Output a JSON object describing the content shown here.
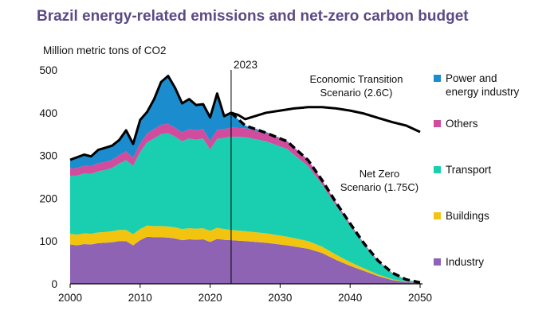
{
  "title": "Brazil energy-related emissions and net-zero carbon budget",
  "chart_data": {
    "type": "area",
    "title": "Brazil energy-related emissions and net-zero carbon budget",
    "ylabel": "Million metric tons of CO2",
    "xlabel": "",
    "xlim": [
      2000,
      2050
    ],
    "ylim": [
      0,
      500
    ],
    "x_ticks": [
      2000,
      2010,
      2020,
      2030,
      2040,
      2050
    ],
    "y_ticks": [
      0,
      100,
      200,
      300,
      400,
      500
    ],
    "grid": false,
    "legend": "right",
    "marker": {
      "x": 2023,
      "label": "2023"
    },
    "series": [
      {
        "name": "Industry",
        "color": "#8e63b4",
        "points": [
          [
            2000,
            92
          ],
          [
            2001,
            90
          ],
          [
            2002,
            93
          ],
          [
            2003,
            92
          ],
          [
            2004,
            95
          ],
          [
            2005,
            96
          ],
          [
            2006,
            97
          ],
          [
            2007,
            100
          ],
          [
            2008,
            100
          ],
          [
            2009,
            90
          ],
          [
            2010,
            102
          ],
          [
            2011,
            110
          ],
          [
            2012,
            109
          ],
          [
            2013,
            109
          ],
          [
            2014,
            108
          ],
          [
            2015,
            106
          ],
          [
            2016,
            102
          ],
          [
            2017,
            104
          ],
          [
            2018,
            103
          ],
          [
            2019,
            104
          ],
          [
            2020,
            98
          ],
          [
            2021,
            105
          ],
          [
            2022,
            103
          ],
          [
            2023,
            102
          ],
          [
            2025,
            100
          ],
          [
            2028,
            96
          ],
          [
            2031,
            90
          ],
          [
            2034,
            82
          ],
          [
            2036,
            72
          ],
          [
            2038,
            56
          ],
          [
            2040,
            42
          ],
          [
            2042,
            30
          ],
          [
            2044,
            18
          ],
          [
            2046,
            9
          ],
          [
            2048,
            4
          ],
          [
            2050,
            2
          ]
        ]
      },
      {
        "name": "Buildings",
        "color": "#f2c410",
        "points": [
          [
            2000,
            25
          ],
          [
            2001,
            25
          ],
          [
            2002,
            25
          ],
          [
            2003,
            25
          ],
          [
            2004,
            25
          ],
          [
            2005,
            25
          ],
          [
            2006,
            26
          ],
          [
            2007,
            26
          ],
          [
            2008,
            26
          ],
          [
            2009,
            26
          ],
          [
            2010,
            26
          ],
          [
            2011,
            26
          ],
          [
            2012,
            26
          ],
          [
            2013,
            26
          ],
          [
            2014,
            26
          ],
          [
            2015,
            26
          ],
          [
            2016,
            26
          ],
          [
            2017,
            26
          ],
          [
            2018,
            26
          ],
          [
            2019,
            26
          ],
          [
            2020,
            26
          ],
          [
            2021,
            26
          ],
          [
            2022,
            25
          ],
          [
            2023,
            24
          ],
          [
            2025,
            23
          ],
          [
            2028,
            22
          ],
          [
            2031,
            20
          ],
          [
            2034,
            18
          ],
          [
            2036,
            15
          ],
          [
            2038,
            12
          ],
          [
            2040,
            9
          ],
          [
            2042,
            6
          ],
          [
            2044,
            4
          ],
          [
            2046,
            2
          ],
          [
            2048,
            1
          ],
          [
            2050,
            0
          ]
        ]
      },
      {
        "name": "Transport",
        "color": "#19cfb0",
        "points": [
          [
            2000,
            135
          ],
          [
            2001,
            138
          ],
          [
            2002,
            140
          ],
          [
            2003,
            140
          ],
          [
            2004,
            143
          ],
          [
            2005,
            145
          ],
          [
            2006,
            148
          ],
          [
            2007,
            155
          ],
          [
            2008,
            163
          ],
          [
            2009,
            160
          ],
          [
            2010,
            180
          ],
          [
            2011,
            195
          ],
          [
            2012,
            205
          ],
          [
            2013,
            215
          ],
          [
            2014,
            218
          ],
          [
            2015,
            212
          ],
          [
            2016,
            205
          ],
          [
            2017,
            210
          ],
          [
            2018,
            208
          ],
          [
            2019,
            210
          ],
          [
            2020,
            190
          ],
          [
            2021,
            208
          ],
          [
            2022,
            213
          ],
          [
            2023,
            218
          ],
          [
            2025,
            220
          ],
          [
            2028,
            215
          ],
          [
            2031,
            205
          ],
          [
            2034,
            175
          ],
          [
            2036,
            145
          ],
          [
            2038,
            115
          ],
          [
            2040,
            85
          ],
          [
            2042,
            55
          ],
          [
            2044,
            30
          ],
          [
            2046,
            14
          ],
          [
            2048,
            5
          ],
          [
            2050,
            1
          ]
        ]
      },
      {
        "name": "Others",
        "color": "#d24c9e",
        "points": [
          [
            2000,
            18
          ],
          [
            2001,
            18
          ],
          [
            2002,
            18
          ],
          [
            2003,
            18
          ],
          [
            2004,
            19
          ],
          [
            2005,
            19
          ],
          [
            2006,
            19
          ],
          [
            2007,
            20
          ],
          [
            2008,
            21
          ],
          [
            2009,
            19
          ],
          [
            2010,
            20
          ],
          [
            2011,
            21
          ],
          [
            2012,
            22
          ],
          [
            2013,
            22
          ],
          [
            2014,
            22
          ],
          [
            2015,
            21
          ],
          [
            2016,
            21
          ],
          [
            2017,
            22
          ],
          [
            2018,
            22
          ],
          [
            2019,
            22
          ],
          [
            2020,
            20
          ],
          [
            2021,
            21
          ],
          [
            2022,
            21
          ],
          [
            2023,
            21
          ],
          [
            2025,
            21
          ],
          [
            2028,
            20
          ],
          [
            2031,
            18
          ],
          [
            2034,
            14
          ],
          [
            2036,
            10
          ],
          [
            2038,
            7
          ],
          [
            2040,
            5
          ],
          [
            2042,
            3
          ],
          [
            2044,
            2
          ],
          [
            2046,
            1
          ],
          [
            2048,
            0
          ],
          [
            2050,
            0
          ]
        ]
      },
      {
        "name": "Power and energy industry",
        "color": "#1b8ccd",
        "points": [
          [
            2000,
            20
          ],
          [
            2001,
            27
          ],
          [
            2002,
            26
          ],
          [
            2003,
            22
          ],
          [
            2004,
            33
          ],
          [
            2005,
            32
          ],
          [
            2006,
            33
          ],
          [
            2007,
            35
          ],
          [
            2008,
            50
          ],
          [
            2009,
            32
          ],
          [
            2010,
            55
          ],
          [
            2011,
            50
          ],
          [
            2012,
            70
          ],
          [
            2013,
            100
          ],
          [
            2014,
            112
          ],
          [
            2015,
            93
          ],
          [
            2016,
            68
          ],
          [
            2017,
            70
          ],
          [
            2018,
            59
          ],
          [
            2019,
            58
          ],
          [
            2020,
            55
          ],
          [
            2021,
            85
          ],
          [
            2022,
            30
          ],
          [
            2023,
            35
          ],
          [
            2025,
            6
          ],
          [
            2028,
            2
          ],
          [
            2031,
            1
          ],
          [
            2034,
            1
          ],
          [
            2036,
            0
          ],
          [
            2038,
            0
          ],
          [
            2040,
            0
          ],
          [
            2042,
            0
          ],
          [
            2044,
            0
          ],
          [
            2046,
            0
          ],
          [
            2048,
            0
          ],
          [
            2050,
            0
          ]
        ]
      }
    ],
    "scenarios": [
      {
        "name": "Economic Transition Scenario (2.6C)",
        "line1": "Economic Transition",
        "line2": "Scenario (2.6C)",
        "style": "solid",
        "points": [
          [
            2000,
            290
          ],
          [
            2002,
            302
          ],
          [
            2003,
            298
          ],
          [
            2004,
            313
          ],
          [
            2005,
            318
          ],
          [
            2006,
            323
          ],
          [
            2007,
            336
          ],
          [
            2008,
            359
          ],
          [
            2009,
            327
          ],
          [
            2010,
            383
          ],
          [
            2011,
            402
          ],
          [
            2012,
            432
          ],
          [
            2013,
            472
          ],
          [
            2014,
            486
          ],
          [
            2015,
            458
          ],
          [
            2016,
            422
          ],
          [
            2017,
            432
          ],
          [
            2018,
            418
          ],
          [
            2019,
            420
          ],
          [
            2020,
            389
          ],
          [
            2021,
            445
          ],
          [
            2022,
            392
          ],
          [
            2023,
            400
          ],
          [
            2024,
            395
          ],
          [
            2025,
            385
          ],
          [
            2026,
            390
          ],
          [
            2028,
            400
          ],
          [
            2030,
            405
          ],
          [
            2032,
            410
          ],
          [
            2034,
            413
          ],
          [
            2036,
            413
          ],
          [
            2038,
            410
          ],
          [
            2040,
            405
          ],
          [
            2042,
            398
          ],
          [
            2044,
            388
          ],
          [
            2046,
            378
          ],
          [
            2048,
            370
          ],
          [
            2050,
            355
          ]
        ]
      },
      {
        "name": "Net Zero Scenario (1.75C)",
        "line1": "Net Zero",
        "line2": "Scenario (1.75C)",
        "style": "dashed",
        "points": [
          [
            2023,
            400
          ],
          [
            2025,
            370
          ],
          [
            2028,
            353
          ],
          [
            2031,
            333
          ],
          [
            2034,
            289
          ],
          [
            2036,
            242
          ],
          [
            2038,
            190
          ],
          [
            2040,
            141
          ],
          [
            2042,
            94
          ],
          [
            2044,
            54
          ],
          [
            2046,
            26
          ],
          [
            2048,
            10
          ],
          [
            2050,
            3
          ]
        ]
      }
    ]
  }
}
